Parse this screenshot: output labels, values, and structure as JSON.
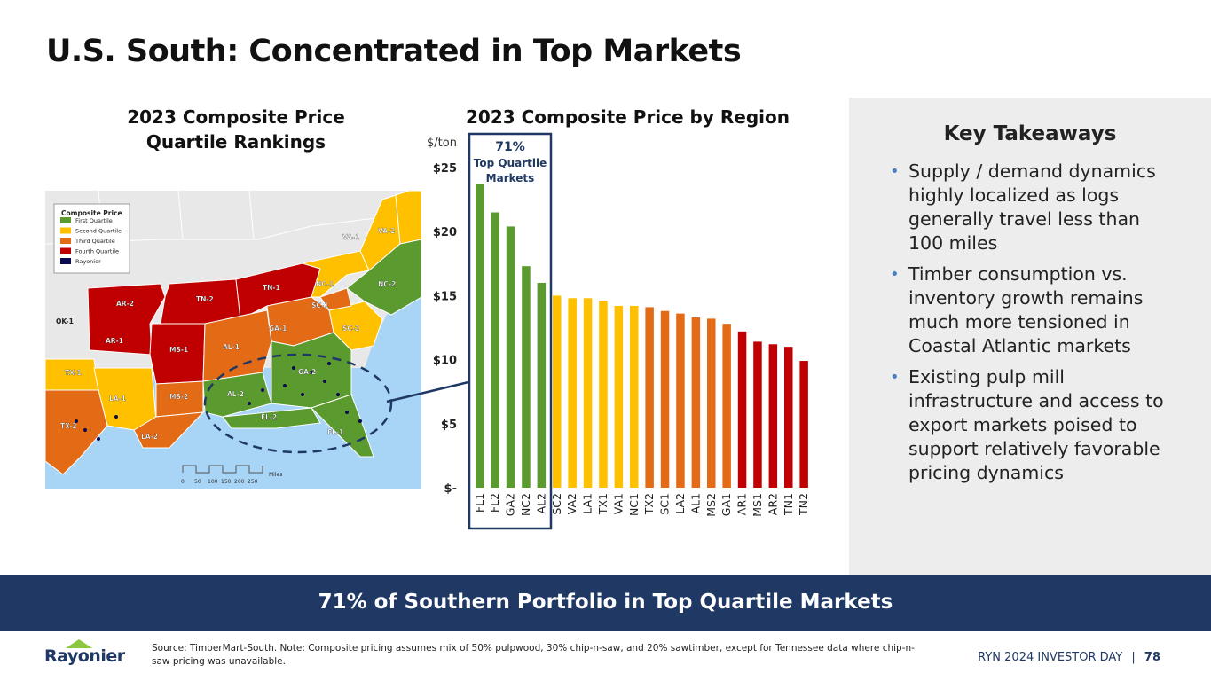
{
  "page_title": "U.S. South: Concentrated in Top Markets",
  "map": {
    "title": "2023 Composite Price Quartile Rankings",
    "legend_title": "Composite Price",
    "legend_items": [
      {
        "label": "First Quartile",
        "color": "#5a9a2e"
      },
      {
        "label": "Second Quartile",
        "color": "#ffc000"
      },
      {
        "label": "Third Quartile",
        "color": "#e36b16"
      },
      {
        "label": "Fourth Quartile",
        "color": "#c00000"
      },
      {
        "label": "Rayonier",
        "color": "#0a0a50"
      }
    ],
    "region_labels": [
      "AR-2",
      "AR-1",
      "TN-2",
      "TN-1",
      "NC-1",
      "VA-1",
      "VA-2",
      "NC-2",
      "SC-1",
      "GA-1",
      "SC-2",
      "AL-1",
      "MS-1",
      "OK-1",
      "TX-1",
      "LA-1",
      "MS-2",
      "AL-2",
      "GA-2",
      "FL-2",
      "FL-1",
      "TX-2",
      "LA-2"
    ],
    "scale_ticks": [
      "0",
      "50",
      "100",
      "150",
      "200",
      "250"
    ],
    "scale_unit": "Miles"
  },
  "chart_data": {
    "type": "bar",
    "title": "2023 Composite Price by Region",
    "ylabel": "$/ton",
    "ylim": [
      0,
      25
    ],
    "yticks": [
      {
        "value": 0,
        "label": "$-"
      },
      {
        "value": 5,
        "label": "$5"
      },
      {
        "value": 10,
        "label": "$10"
      },
      {
        "value": 15,
        "label": "$15"
      },
      {
        "value": 20,
        "label": "$20"
      },
      {
        "value": 25,
        "label": "$25"
      }
    ],
    "categories": [
      "FL1",
      "FL2",
      "GA2",
      "NC2",
      "AL2",
      "SC2",
      "VA2",
      "LA1",
      "TX1",
      "VA1",
      "NC1",
      "TX2",
      "SC1",
      "LA2",
      "AL1",
      "MS2",
      "GA1",
      "AR1",
      "MS1",
      "AR2",
      "TN1",
      "TN2"
    ],
    "values": [
      23.7,
      21.5,
      20.4,
      17.3,
      16.0,
      15.0,
      14.8,
      14.8,
      14.6,
      14.2,
      14.2,
      14.1,
      13.8,
      13.6,
      13.3,
      13.2,
      12.8,
      12.2,
      11.4,
      11.2,
      11.0,
      9.9
    ],
    "quartile": [
      1,
      1,
      1,
      1,
      1,
      2,
      2,
      2,
      2,
      2,
      2,
      3,
      3,
      3,
      3,
      3,
      3,
      4,
      4,
      4,
      4,
      4
    ],
    "quartile_colors": {
      "1": "#5a9a2e",
      "2": "#ffc000",
      "3": "#e36b16",
      "4": "#c00000"
    },
    "callout": {
      "percent": "71%",
      "label_line1": "Top Quartile",
      "label_line2": "Markets"
    }
  },
  "takeaways": {
    "title": "Key Takeaways",
    "bullets": [
      "Supply / demand dynamics highly localized as logs generally travel less than 100 miles",
      "Timber consumption vs. inventory growth remains much more tensioned in Coastal Atlantic markets",
      "Existing pulp mill infrastructure and access to export markets poised to support relatively favorable pricing dynamics"
    ]
  },
  "banner": "71% of Southern Portfolio in Top Quartile Markets",
  "footer": {
    "source": "Source: TimberMart-South. Note: Composite pricing assumes mix of 50% pulpwood, 30% chip-n-saw, and 20% sawtimber, except for Tennessee data where chip-n-saw pricing was unavailable.",
    "logo": "Rayonier",
    "event": "RYN 2024 INVESTOR DAY",
    "separator": "|",
    "page_number": "78"
  }
}
